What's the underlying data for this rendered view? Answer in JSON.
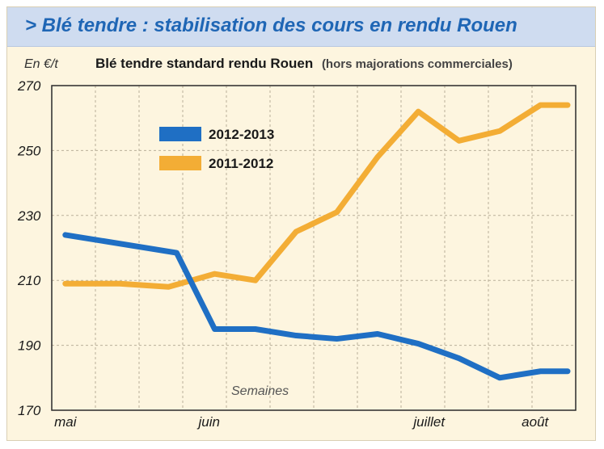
{
  "header": {
    "title": "> Blé tendre : stabilisation des cours en rendu Rouen"
  },
  "chart_data": {
    "type": "line",
    "title": "Blé tendre standard rendu Rouen",
    "subtitle": "(hors majorations commerciales)",
    "ylabel": "En €/t",
    "xlabel": "Semaines",
    "ylim": [
      170,
      270
    ],
    "yticks": [
      170,
      190,
      210,
      230,
      250,
      270
    ],
    "xlim": [
      0,
      19
    ],
    "xticks": [
      {
        "label": "mai",
        "x": 0.5
      },
      {
        "label": "juin",
        "x": 5.8
      },
      {
        "label": "juillet",
        "x": 13.9
      },
      {
        "label": "août",
        "x": 17.8
      }
    ],
    "grid": true,
    "legend_position": "top-left",
    "series": [
      {
        "name": "2012-2013",
        "color": "#1f6fc4",
        "x": [
          0.5,
          4.6,
          6,
          7.5,
          9,
          10.5,
          12,
          13.5,
          15,
          16.5,
          18,
          19
        ],
        "values": [
          224,
          218.5,
          195,
          195,
          193,
          192,
          193.5,
          190.5,
          186,
          180,
          182,
          182
        ]
      },
      {
        "name": "2011-2012",
        "color": "#f3ad35",
        "x": [
          0.5,
          2.5,
          4.3,
          6,
          7.5,
          9,
          10.5,
          12,
          13.5,
          15,
          16.5,
          18,
          19
        ],
        "values": [
          209,
          209,
          208,
          212,
          210,
          225,
          231,
          248,
          262,
          253,
          256,
          264,
          264
        ]
      }
    ]
  }
}
